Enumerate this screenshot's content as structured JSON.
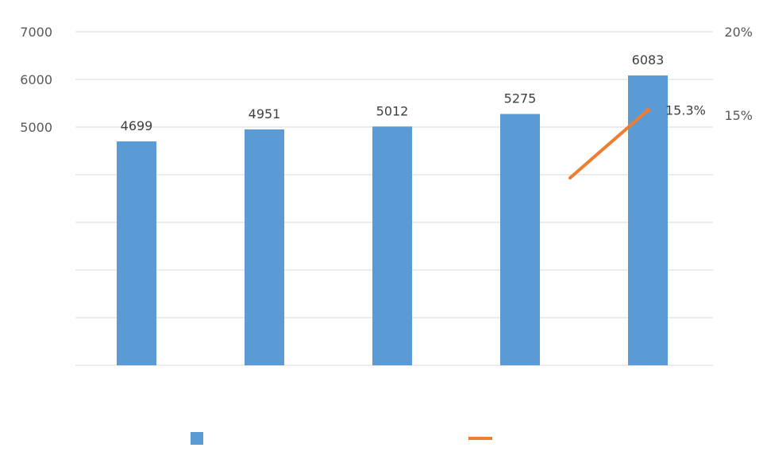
{
  "chart_data": {
    "type": "bar",
    "categories": [
      "",
      "",
      "",
      "",
      ""
    ],
    "series": [
      {
        "type": "bar",
        "values": [
          4699,
          4951,
          5012,
          5275,
          6083
        ],
        "color": "#5B9BD5",
        "axis": "left"
      },
      {
        "type": "line",
        "values": [
          null,
          null,
          null,
          null,
          15.3
        ],
        "color": "#ED7D31",
        "axis": "right",
        "unit": "%"
      }
    ],
    "left_axis": {
      "ticks": [
        "7000",
        "6000",
        "5000"
      ],
      "ylim": [
        0,
        7000
      ]
    },
    "right_axis": {
      "ticks": [
        "20%",
        "15%"
      ],
      "ylim": [
        0,
        20
      ]
    },
    "grid": true,
    "legend_position": "bottom",
    "data_labels": {
      "bars": [
        "4699",
        "4951",
        "5012",
        "5275",
        "6083"
      ],
      "line": [
        "",
        "",
        "",
        "",
        "15.3%"
      ]
    }
  }
}
